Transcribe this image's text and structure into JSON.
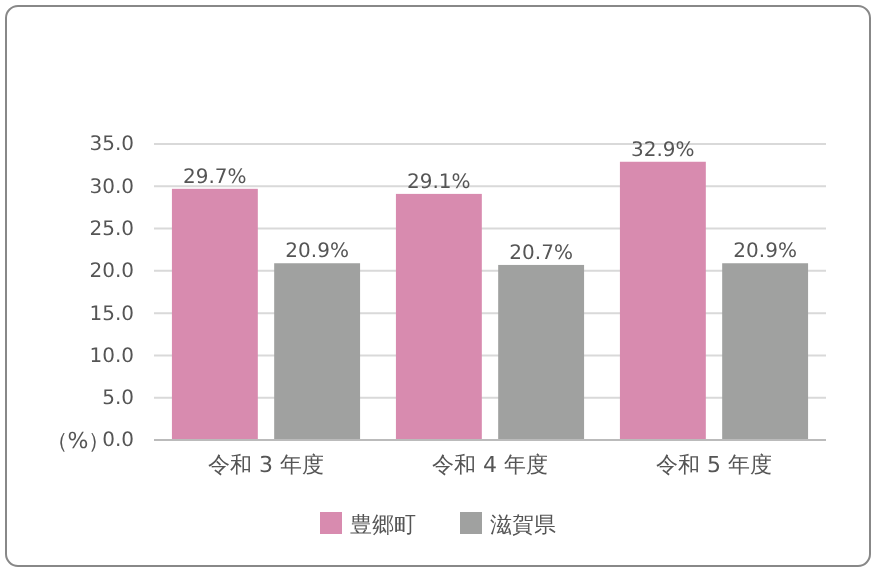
{
  "chart_data": {
    "type": "bar",
    "ylabel": "（%）",
    "categories": [
      "令和 3 年度",
      "令和 4 年度",
      "令和 5 年度"
    ],
    "series": [
      {
        "name": "豊郷町",
        "color": "#d88baf",
        "values": [
          29.7,
          29.1,
          32.9
        ],
        "value_labels": [
          "29.7%",
          "29.1%",
          "32.9%"
        ]
      },
      {
        "name": "滋賀県",
        "color": "#a0a1a0",
        "values": [
          20.9,
          20.7,
          20.9
        ],
        "value_labels": [
          "20.9%",
          "20.7%",
          "20.9%"
        ]
      }
    ],
    "ylim": [
      0,
      35
    ],
    "yticks": [
      {
        "value": 0,
        "label": "0.0"
      },
      {
        "value": 5,
        "label": "5.0"
      },
      {
        "value": 10,
        "label": "10.0"
      },
      {
        "value": 15,
        "label": "15.0"
      },
      {
        "value": 20,
        "label": "20.0"
      },
      {
        "value": 25,
        "label": "25.0"
      },
      {
        "value": 30,
        "label": "30.0"
      },
      {
        "value": 35,
        "label": "35.0"
      }
    ],
    "grid": "y",
    "legend": "bottom"
  }
}
